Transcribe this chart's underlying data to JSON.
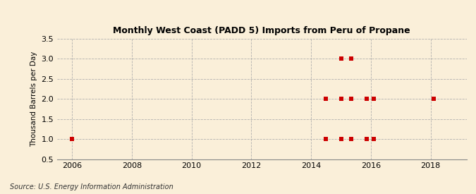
{
  "title": "Monthly West Coast (PADD 5) Imports from Peru of Propane",
  "ylabel": "Thousand Barrels per Day",
  "source": "Source: U.S. Energy Information Administration",
  "background_color": "#faefd9",
  "plot_background_color": "#faefd9",
  "marker_color": "#cc0000",
  "marker_size": 16,
  "xlim": [
    2005.5,
    2019.2
  ],
  "ylim": [
    0.5,
    3.5
  ],
  "xticks": [
    2006,
    2008,
    2010,
    2012,
    2014,
    2016,
    2018
  ],
  "yticks": [
    0.5,
    1.0,
    1.5,
    2.0,
    2.5,
    3.0,
    3.5
  ],
  "data_x": [
    2006.0,
    2014.5,
    2014.5,
    2015.0,
    2015.0,
    2015.0,
    2015.35,
    2015.35,
    2015.35,
    2015.85,
    2015.85,
    2016.1,
    2016.1,
    2018.1
  ],
  "data_y": [
    1.0,
    1.0,
    2.0,
    3.0,
    2.0,
    1.0,
    3.0,
    2.0,
    1.0,
    2.0,
    1.0,
    2.0,
    1.0,
    2.0
  ]
}
